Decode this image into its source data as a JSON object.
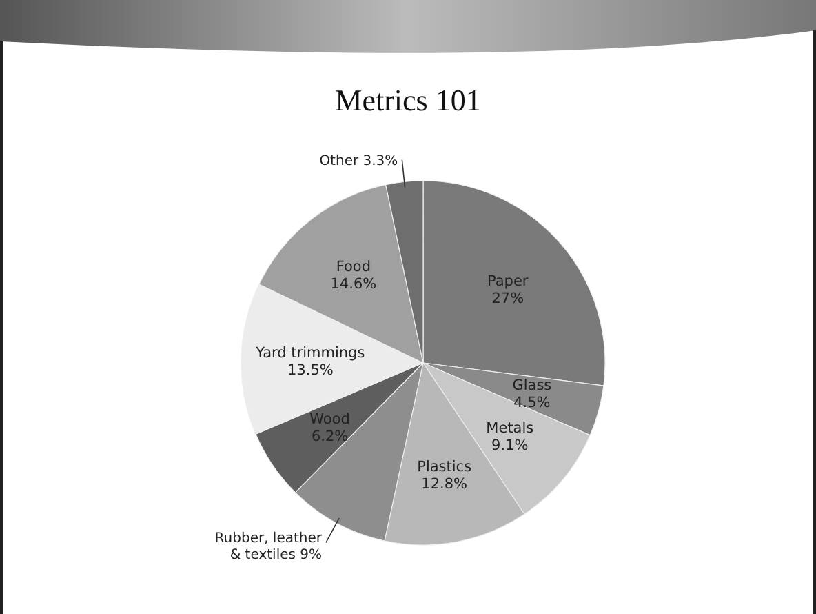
{
  "chart_data": {
    "type": "pie",
    "title": "Metrics 101",
    "categories": [
      "Paper",
      "Glass",
      "Metals",
      "Plastics",
      "Rubber, leather & textiles",
      "Wood",
      "Yard trimmings",
      "Food",
      "Other"
    ],
    "values": [
      27,
      4.5,
      9.1,
      12.8,
      9,
      6.2,
      13.5,
      14.6,
      3.3
    ],
    "colors": [
      "#7a7a7a",
      "#8a8a8a",
      "#c8c8c8",
      "#b8b8b8",
      "#8e8e8e",
      "#5e5e5e",
      "#ececec",
      "#a0a0a0",
      "#6e6e6e"
    ],
    "value_labels": [
      "27%",
      "4.5%",
      "9.1%",
      "12.8%",
      "9%",
      "6.2%",
      "13.5%",
      "14.6%",
      "3.3%"
    ]
  }
}
